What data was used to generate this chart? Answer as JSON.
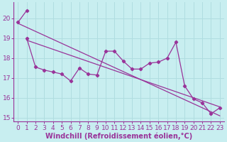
{
  "xlabel": "Windchill (Refroidissement éolien,°C)",
  "background_color": "#c8eef0",
  "grid_color": "#b0dde0",
  "line_color": "#993399",
  "xlim": [
    -0.5,
    23.5
  ],
  "ylim": [
    14.8,
    20.8
  ],
  "yticks": [
    15,
    16,
    17,
    18,
    19,
    20
  ],
  "xticks": [
    0,
    1,
    2,
    3,
    4,
    5,
    6,
    7,
    8,
    9,
    10,
    11,
    12,
    13,
    14,
    15,
    16,
    17,
    18,
    19,
    20,
    21,
    22,
    23
  ],
  "series1_x": [
    0,
    1
  ],
  "series1_y": [
    19.8,
    20.4
  ],
  "series2_x": [
    1,
    2,
    3,
    4,
    5,
    6,
    7,
    8,
    9,
    10,
    11,
    12,
    13,
    14,
    15,
    16,
    17,
    18,
    19,
    20,
    21,
    22,
    23
  ],
  "series2_y": [
    19.0,
    17.55,
    17.4,
    17.3,
    17.2,
    16.85,
    17.5,
    17.2,
    17.15,
    18.35,
    18.35,
    17.85,
    17.45,
    17.45,
    17.75,
    17.8,
    18.0,
    18.8,
    16.6,
    15.95,
    15.75,
    15.2,
    15.5
  ],
  "trend1_x": [
    0,
    23
  ],
  "trend1_y": [
    19.75,
    15.1
  ],
  "trend2_x": [
    1,
    23
  ],
  "trend2_y": [
    18.9,
    15.55
  ],
  "fontsize_xlabel": 7,
  "tick_fontsize": 6.5
}
